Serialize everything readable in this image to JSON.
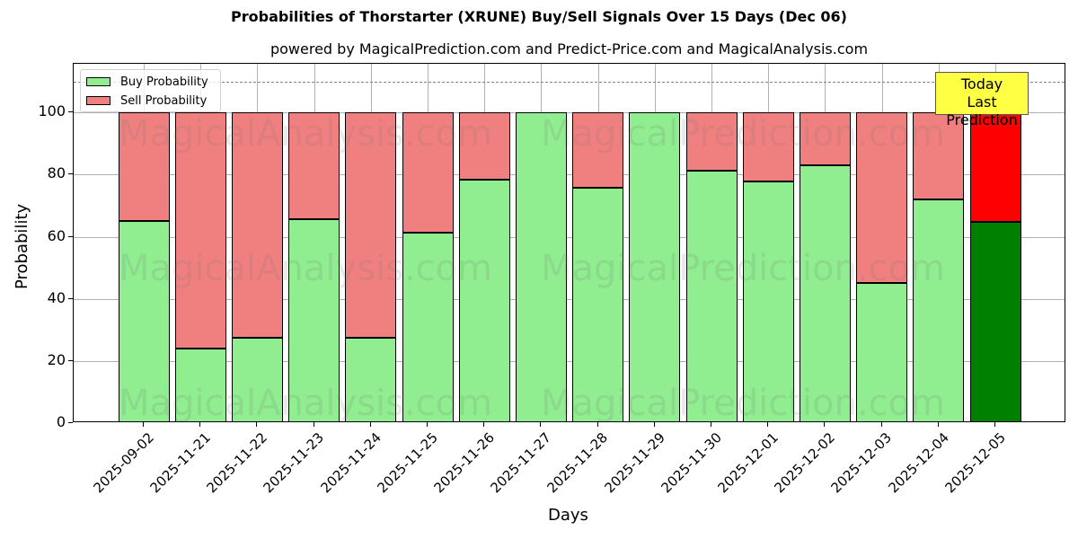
{
  "header": {
    "title": "Probabilities of Thorstarter (XRUNE) Buy/Sell Signals Over 15 Days (Dec 06)",
    "subtitle": "powered by MagicalPrediction.com and Predict-Price.com and MagicalAnalysis.com"
  },
  "legend": {
    "buy_label": "Buy Probability",
    "sell_label": "Sell Probability"
  },
  "annotation": {
    "line1": "Today",
    "line2": "Last Prediction"
  },
  "watermarks": [
    "MagicalAnalysis.com",
    "MagicalPrediction.com"
  ],
  "colors": {
    "buy": "#90ee90",
    "sell": "#f08080",
    "today_buy": "#008000",
    "today_sell": "#ff0000",
    "annotation_bg": "#ffff44",
    "dashed_line": "#808080"
  },
  "chart_data": {
    "type": "bar",
    "stacked": true,
    "title": "Probabilities of Thorstarter (XRUNE) Buy/Sell Signals Over 15 Days (Dec 06)",
    "subtitle": "powered by MagicalPrediction.com and Predict-Price.com and MagicalAnalysis.com",
    "xlabel": "Days",
    "ylabel": "Probability",
    "ylim": [
      0,
      115.7
    ],
    "yticks": [
      0,
      20,
      40,
      60,
      80,
      100
    ],
    "grid": true,
    "legend_position": "upper left",
    "reference_line": {
      "y": 110,
      "style": "dashed",
      "color": "#808080"
    },
    "categories": [
      "2025-09-02",
      "2025-11-21",
      "2025-11-22",
      "2025-11-23",
      "2025-11-24",
      "2025-11-25",
      "2025-11-26",
      "2025-11-27",
      "2025-11-28",
      "2025-11-29",
      "2025-11-30",
      "2025-12-01",
      "2025-12-02",
      "2025-12-03",
      "2025-12-04",
      "2025-12-05"
    ],
    "series": [
      {
        "name": "Buy Probability",
        "values": [
          65,
          24,
          27.6,
          65.8,
          27.6,
          61.4,
          78.3,
          100,
          75.9,
          100,
          81.2,
          77.9,
          82.9,
          45.2,
          72.1,
          64.9
        ]
      },
      {
        "name": "Sell Probability",
        "values": [
          35,
          76,
          72.4,
          34.2,
          72.4,
          38.6,
          21.7,
          0,
          24.1,
          0,
          18.8,
          22.1,
          17.1,
          54.8,
          27.9,
          35.1
        ]
      }
    ],
    "highlight": {
      "index": 15,
      "label": "Today\nLast Prediction",
      "buy_color": "#008000",
      "sell_color": "#ff0000"
    }
  }
}
